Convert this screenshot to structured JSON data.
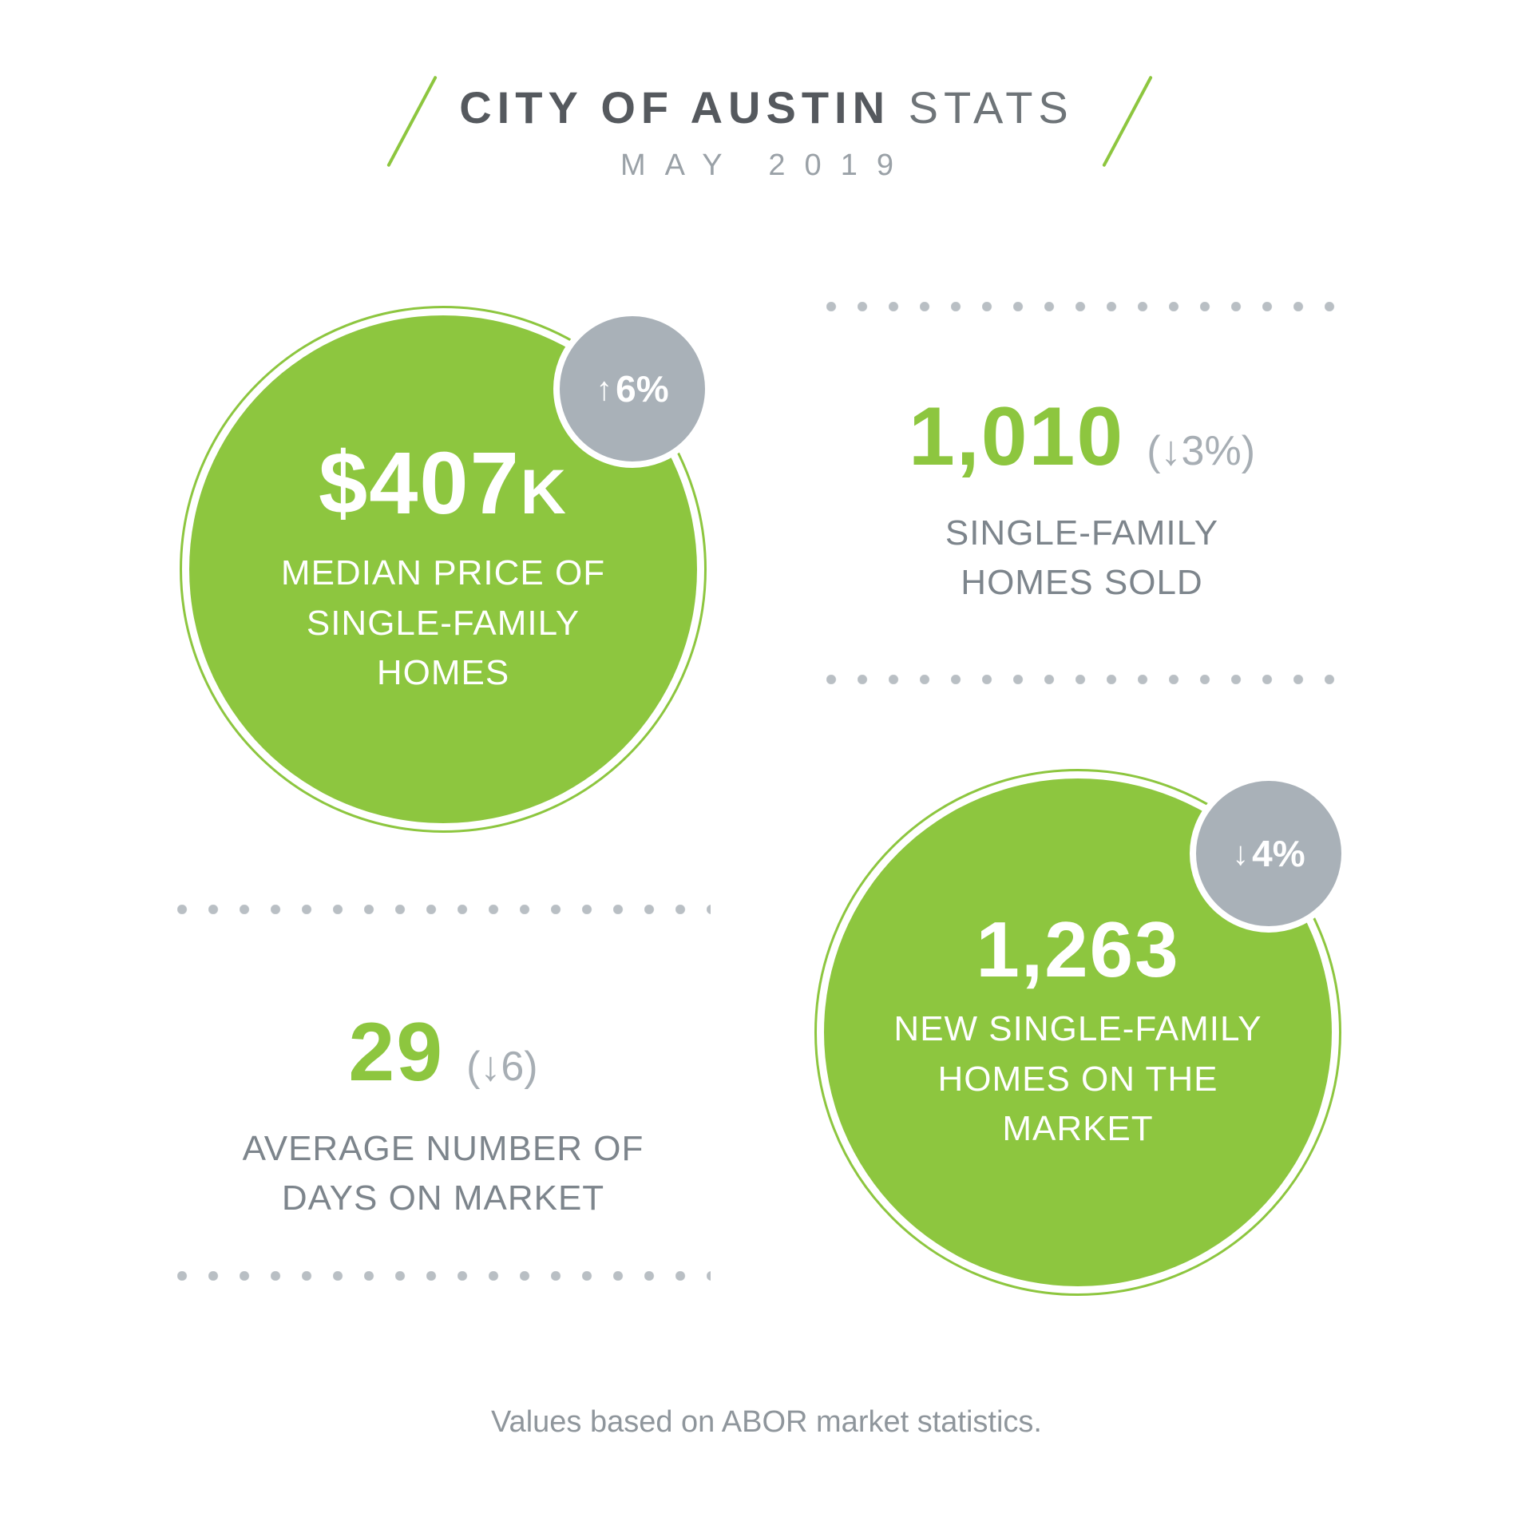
{
  "colors": {
    "green": "#8dc63f",
    "badge_gray": "#a9b1b8",
    "title_dark": "#55595e",
    "text_gray": "#7d858c",
    "light_gray": "#a7aeb4",
    "dots_gray": "#b9bfc4"
  },
  "header": {
    "title_strong": "CITY OF AUSTIN",
    "title_light": "STATS",
    "subtitle": "MAY 2019"
  },
  "median_price": {
    "value": "$407",
    "value_suffix": "K",
    "label_lines": [
      "MEDIAN PRICE OF",
      "SINGLE-FAMILY",
      "HOMES"
    ],
    "badge": {
      "arrow": "↑",
      "text": "6%"
    }
  },
  "homes_sold": {
    "value": "1,010",
    "change": "(↓3%)",
    "label_lines": [
      "SINGLE-FAMILY",
      "HOMES SOLD"
    ]
  },
  "days_on_market": {
    "value": "29",
    "change": "(↓6)",
    "label_lines": [
      "AVERAGE NUMBER OF",
      "DAYS ON MARKET"
    ]
  },
  "new_homes": {
    "value": "1,263",
    "label_lines": [
      "NEW SINGLE-FAMILY",
      "HOMES ON THE",
      "MARKET"
    ],
    "badge": {
      "arrow": "↓",
      "text": "4%"
    }
  },
  "footer": "Values based on ABOR market statistics.",
  "chart_data": {
    "type": "table",
    "title": "City of Austin Stats",
    "period": "May 2019",
    "columns": [
      "metric",
      "value",
      "change"
    ],
    "rows": [
      [
        "Median price of single-family homes",
        "$407K",
        "+6%"
      ],
      [
        "Single-family homes sold",
        "1,010",
        "-3%"
      ],
      [
        "Average number of days on market",
        "29",
        "-6"
      ],
      [
        "New single-family homes on the market",
        "1,263",
        "-4%"
      ]
    ],
    "source": "Values based on ABOR market statistics."
  }
}
